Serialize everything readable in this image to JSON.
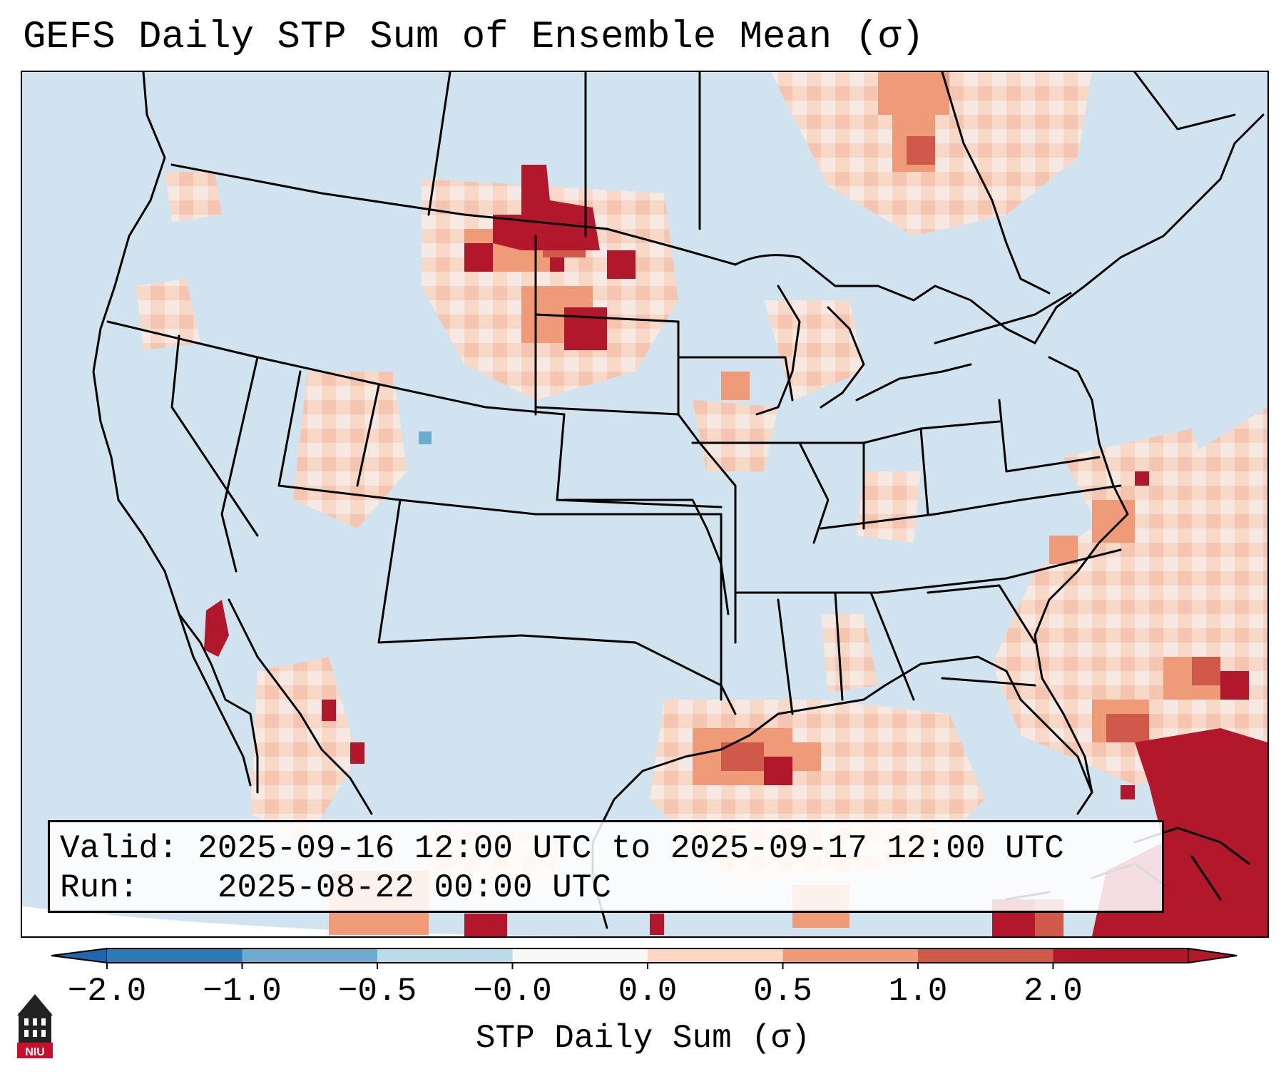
{
  "title": "GEFS Daily STP Sum of Ensemble Mean (σ)",
  "info": {
    "valid_label": "Valid:",
    "valid_value": "2025-09-16 12:00 UTC to 2025-09-17 12:00 UTC",
    "run_label": "Run:",
    "run_value": "2025-08-22 00:00 UTC"
  },
  "colorbar": {
    "label": "STP Daily Sum (σ)",
    "ticks": [
      "−2.0",
      "−1.0",
      "−0.5",
      "−0.0",
      "0.0",
      "0.5",
      "1.0",
      "2.0"
    ],
    "bin_colors": [
      "#2f79b5",
      "#6daccf",
      "#bbdaea",
      "#f7f7f7",
      "#fcd8c4",
      "#ef9b7a",
      "#cf5a4a",
      "#b2182b"
    ],
    "under_color": "#2166ac",
    "over_color": "#b2182b"
  },
  "map": {
    "background_color": "#d0e3ef",
    "coast_color": "#000000",
    "anomaly_regions": [
      {
        "name": "northern-plains-dakotas",
        "level": "2.0"
      },
      {
        "name": "south-dakota-cluster",
        "level": "2.0"
      },
      {
        "name": "caribbean-cuba",
        "level": "2.0"
      },
      {
        "name": "western-gulf-of-mexico",
        "level": "1.0"
      },
      {
        "name": "gulf-of-california",
        "level": "2.0"
      },
      {
        "name": "atlantic-coast",
        "level": "0.5"
      },
      {
        "name": "hudson-bay-south",
        "level": "1.0"
      },
      {
        "name": "colorado-small-negative",
        "level": "-0.5"
      }
    ]
  },
  "logo": {
    "text": "NIU"
  }
}
